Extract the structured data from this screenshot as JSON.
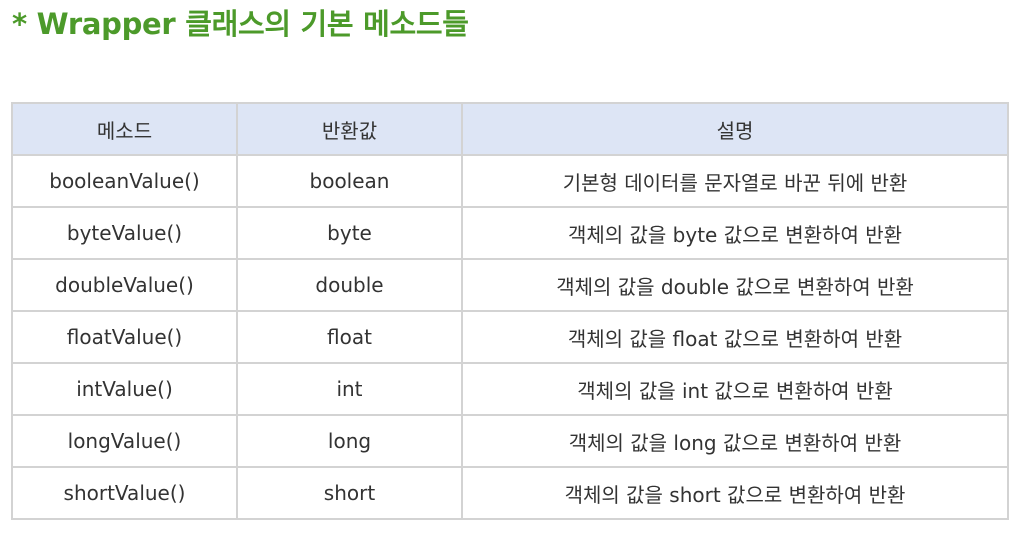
{
  "heading": "* Wrapper 클래스의 기본 메소드들",
  "table": {
    "headers": [
      "메소드",
      "반환값",
      "설명"
    ],
    "rows": [
      [
        "booleanValue()",
        "boolean",
        "기본형 데이터를 문자열로 바꾼 뒤에 반환"
      ],
      [
        "byteValue()",
        "byte",
        "객체의 값을 byte 값으로 변환하여 반환"
      ],
      [
        "doubleValue()",
        "double",
        "객체의 값을 double 값으로 변환하여 반환"
      ],
      [
        "floatValue()",
        "float",
        "객체의 값을 float 값으로 변환하여 반환"
      ],
      [
        "intValue()",
        "int",
        "객체의 값을 int 값으로 변환하여 반환"
      ],
      [
        "longValue()",
        "long",
        "객체의 값을 long 값으로 변환하여 반환"
      ],
      [
        "shortValue()",
        "short",
        "객체의 값을 short 값으로 변환하여 반환"
      ]
    ]
  },
  "colors": {
    "heading": "#4c9a2a",
    "header_background": "#dde5f5",
    "border": "#d3d3d3",
    "text": "#333333"
  }
}
